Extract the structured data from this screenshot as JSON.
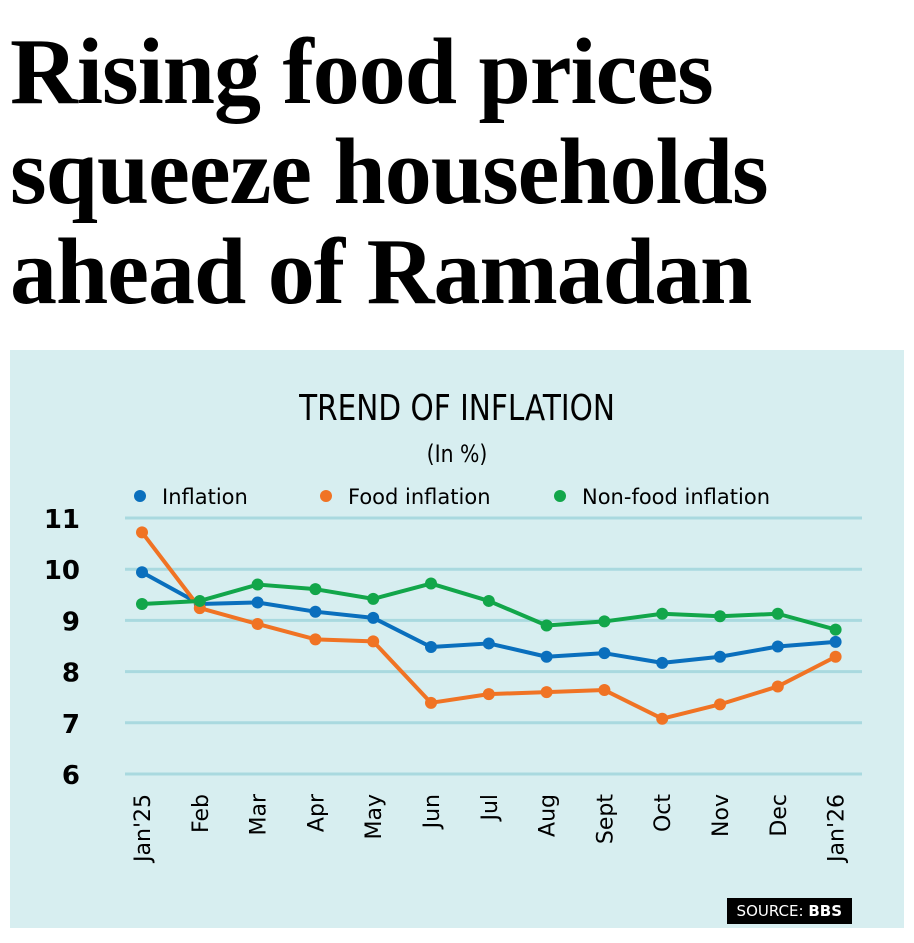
{
  "headline": "Rising food prices squeeze households ahead of Ramadan",
  "chart_data": {
    "type": "line",
    "title": "TREND OF INFLATION",
    "subtitle": "(In %)",
    "categories": [
      "Jan'25",
      "Feb",
      "Mar",
      "Apr",
      "May",
      "Jun",
      "Jul",
      "Aug",
      "Sept",
      "Oct",
      "Nov",
      "Dec",
      "Jan'26"
    ],
    "ylim": [
      6,
      11
    ],
    "yticks": [
      6,
      7,
      8,
      9,
      10,
      11
    ],
    "grid": true,
    "legend_position": "top",
    "series": [
      {
        "name": "Inflation",
        "color": "#0a6fbd",
        "values": [
          9.94,
          9.32,
          9.35,
          9.17,
          9.05,
          8.48,
          8.55,
          8.29,
          8.36,
          8.17,
          8.29,
          8.49,
          8.58
        ]
      },
      {
        "name": "Food inflation",
        "color": "#f07324",
        "values": [
          10.72,
          9.24,
          8.93,
          8.63,
          8.59,
          7.39,
          7.56,
          7.6,
          7.64,
          7.08,
          7.36,
          7.71,
          8.29
        ]
      },
      {
        "name": "Non-food inflation",
        "color": "#12a64a",
        "values": [
          9.32,
          9.38,
          9.7,
          9.61,
          9.42,
          9.72,
          9.38,
          8.9,
          8.98,
          9.13,
          9.08,
          9.13,
          8.82
        ]
      }
    ]
  },
  "source": {
    "label": "SOURCE:",
    "value": "BBS"
  }
}
